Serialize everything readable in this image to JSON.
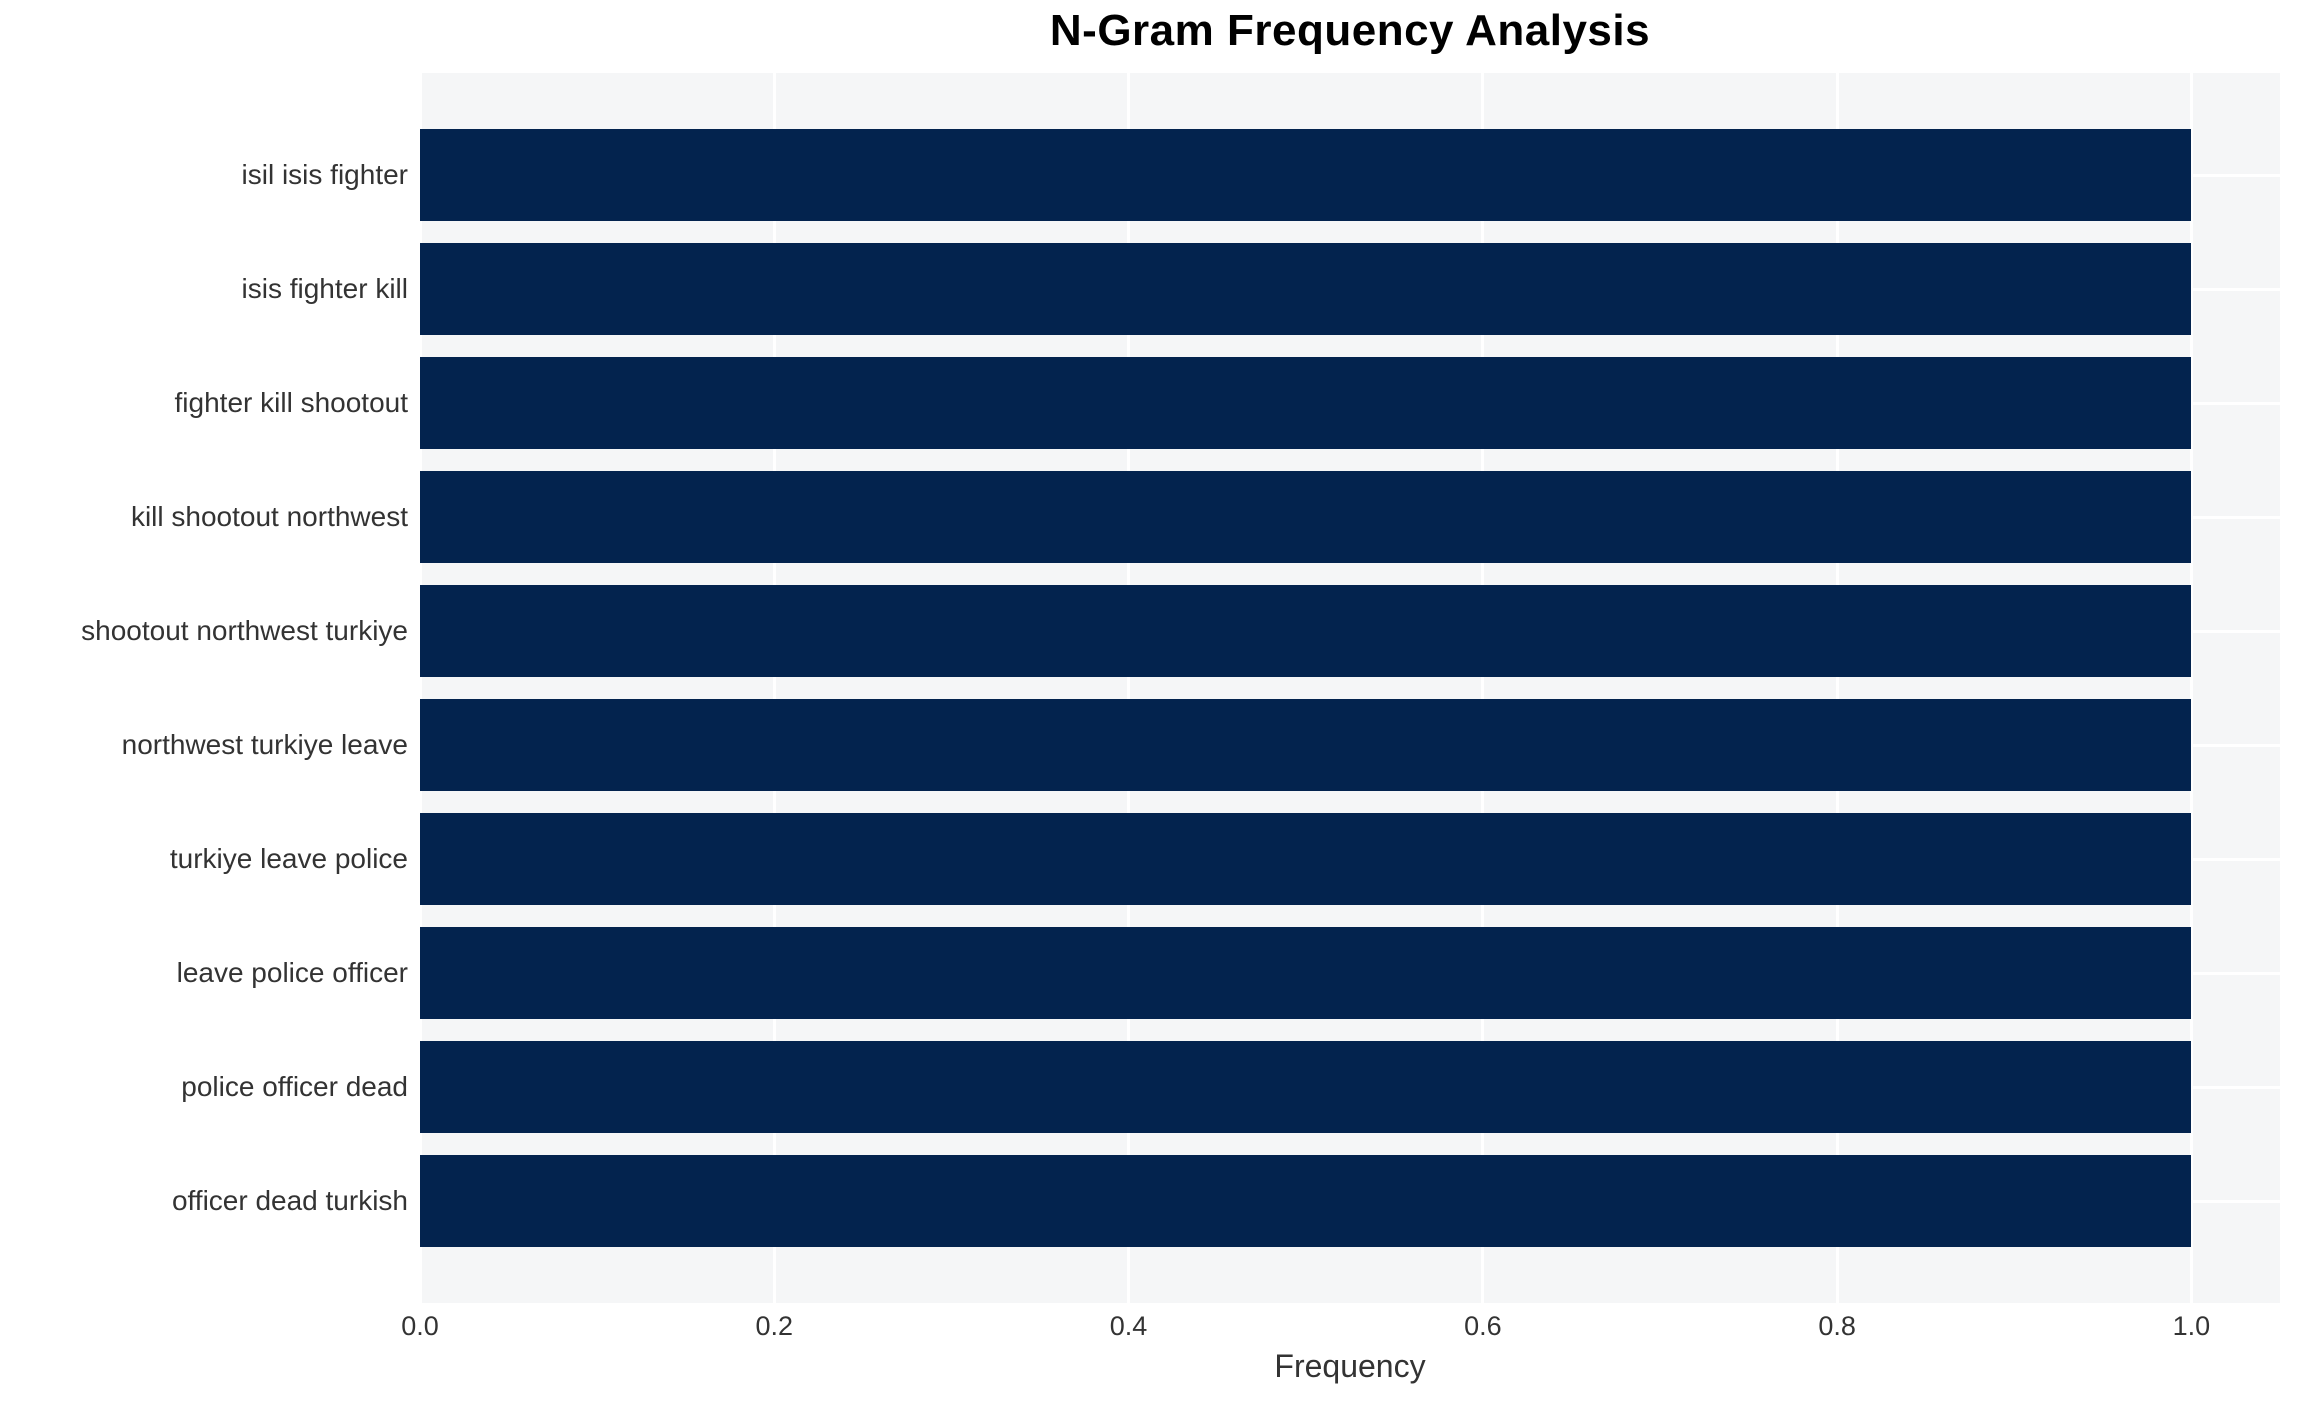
{
  "chart_data": {
    "type": "bar",
    "orientation": "horizontal",
    "title": "N-Gram Frequency Analysis",
    "xlabel": "Frequency",
    "ylabel": "",
    "categories": [
      "isil isis fighter",
      "isis fighter kill",
      "fighter kill shootout",
      "kill shootout northwest",
      "shootout northwest turkiye",
      "northwest turkiye leave",
      "turkiye leave police",
      "leave police officer",
      "police officer dead",
      "officer dead turkish"
    ],
    "values": [
      1.0,
      1.0,
      1.0,
      1.0,
      1.0,
      1.0,
      1.0,
      1.0,
      1.0,
      1.0
    ],
    "xlim": [
      0,
      1.05
    ],
    "xtick_labels": [
      "0.0",
      "0.2",
      "0.4",
      "0.6",
      "0.8",
      "1.0"
    ],
    "xtick_values": [
      0.0,
      0.2,
      0.4,
      0.6,
      0.8,
      1.0
    ],
    "grid": true,
    "legend": false
  },
  "colors": {
    "bar": "#03234e",
    "plot_background": "#f5f6f7",
    "gridline": "#ffffff",
    "title_text": "#000000",
    "axis_text": "#333333"
  }
}
